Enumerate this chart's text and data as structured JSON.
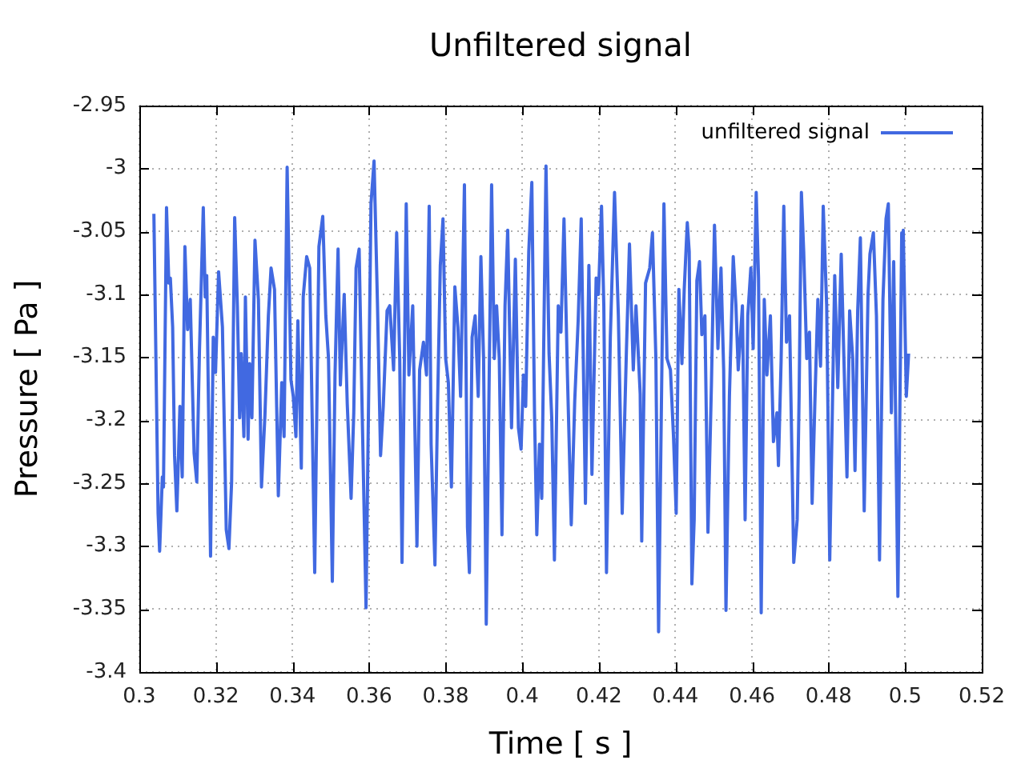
{
  "chart_data": {
    "type": "line",
    "title": "Unfiltered signal",
    "xlabel": "Time [ s ]",
    "ylabel": "Pressure [ Pa ]",
    "xlim": [
      0.3,
      0.52
    ],
    "xticks": [
      0.3,
      0.32,
      0.34,
      0.36,
      0.38,
      0.4,
      0.42,
      0.44,
      0.46,
      0.48,
      0.5,
      0.52
    ],
    "ylim": [
      -3.4,
      -2.95
    ],
    "yticks": [
      -3.4,
      -3.35,
      -3.3,
      -3.25,
      -3.2,
      -3.15,
      -3.1,
      -3.05,
      -3,
      -2.95
    ],
    "grid": true,
    "legend": "top right",
    "series": [
      {
        "name": "unfiltered signal",
        "color": "#4169e1",
        "x": [
          0.3038,
          0.3049,
          0.3053,
          0.306,
          0.3063,
          0.3071,
          0.3077,
          0.3081,
          0.3087,
          0.3092,
          0.3098,
          0.3106,
          0.3112,
          0.3119,
          0.3126,
          0.3133,
          0.3143,
          0.315,
          0.3157,
          0.3167,
          0.3172,
          0.3176,
          0.3186,
          0.3193,
          0.3199,
          0.3207,
          0.3217,
          0.3227,
          0.3234,
          0.3241,
          0.3249,
          0.3256,
          0.3262,
          0.3266,
          0.3273,
          0.3277,
          0.3284,
          0.3288,
          0.3294,
          0.3302,
          0.3311,
          0.3319,
          0.3328,
          0.3337,
          0.3344,
          0.3353,
          0.3363,
          0.3372,
          0.3378,
          0.3386,
          0.3396,
          0.3402,
          0.3409,
          0.3414,
          0.3423,
          0.3428,
          0.3437,
          0.3445,
          0.3458,
          0.3469,
          0.3479,
          0.3487,
          0.3494,
          0.3504,
          0.3511,
          0.3519,
          0.3525,
          0.3535,
          0.3543,
          0.3553,
          0.356,
          0.3566,
          0.3574,
          0.3582,
          0.3592,
          0.3605,
          0.3613,
          0.3622,
          0.363,
          0.3637,
          0.3647,
          0.3654,
          0.3664,
          0.3672,
          0.368,
          0.3686,
          0.3697,
          0.3704,
          0.3714,
          0.3725,
          0.3732,
          0.3742,
          0.375,
          0.3757,
          0.3762,
          0.3772,
          0.3779,
          0.3786,
          0.3793,
          0.38,
          0.3807,
          0.3815,
          0.3824,
          0.3832,
          0.3839,
          0.3849,
          0.3857,
          0.3862,
          0.3869,
          0.3877,
          0.3885,
          0.3892,
          0.3899,
          0.3906,
          0.3913,
          0.392,
          0.3927,
          0.3933,
          0.394,
          0.3947,
          0.3955,
          0.3962,
          0.3972,
          0.3982,
          0.399,
          0.3997,
          0.4003,
          0.4009,
          0.4017,
          0.4025,
          0.4032,
          0.4038,
          0.4045,
          0.4051,
          0.4062,
          0.407,
          0.4077,
          0.4084,
          0.4094,
          0.4101,
          0.4109,
          0.4118,
          0.4128,
          0.4137,
          0.4146,
          0.4154,
          0.4165,
          0.4174,
          0.4182,
          0.4193,
          0.4199,
          0.4207,
          0.4213,
          0.422,
          0.423,
          0.4241,
          0.4251,
          0.4261,
          0.4272,
          0.428,
          0.429,
          0.4297,
          0.4308,
          0.4312,
          0.4322,
          0.4333,
          0.434,
          0.4349,
          0.4356,
          0.437,
          0.4378,
          0.4387,
          0.4395,
          0.4402,
          0.4409,
          0.4417,
          0.4423,
          0.4431,
          0.4436,
          0.4443,
          0.4449,
          0.4456,
          0.4463,
          0.4469,
          0.4477,
          0.4485,
          0.4494,
          0.4502,
          0.4511,
          0.4519,
          0.4526,
          0.4532,
          0.4541,
          0.4551,
          0.4558,
          0.4564,
          0.4575,
          0.4582,
          0.4589,
          0.4597,
          0.4603,
          0.4611,
          0.4617,
          0.4624,
          0.4632,
          0.4639,
          0.4648,
          0.4656,
          0.4665,
          0.4669,
          0.4676,
          0.4683,
          0.469,
          0.4698,
          0.4709,
          0.4718,
          0.4723,
          0.4729,
          0.4735,
          0.4743,
          0.475,
          0.4757,
          0.4765,
          0.4772,
          0.4779,
          0.4786,
          0.4795,
          0.4803,
          0.4816,
          0.4824,
          0.4833,
          0.484,
          0.4848,
          0.4855,
          0.4863,
          0.4869,
          0.4876,
          0.4883,
          0.4893,
          0.4903,
          0.4908,
          0.4917,
          0.4925,
          0.4933,
          0.4942,
          0.495,
          0.4956,
          0.4964,
          0.497,
          0.4981,
          0.4991,
          0.4995,
          0.5003,
          0.5009
        ],
        "values": [
          -3.036,
          -3.274,
          -3.304,
          -3.245,
          -3.253,
          -3.031,
          -3.091,
          -3.087,
          -3.126,
          -3.228,
          -3.272,
          -3.189,
          -3.245,
          -3.062,
          -3.128,
          -3.104,
          -3.226,
          -3.249,
          -3.145,
          -3.031,
          -3.102,
          -3.085,
          -3.308,
          -3.134,
          -3.162,
          -3.082,
          -3.126,
          -3.287,
          -3.302,
          -3.249,
          -3.039,
          -3.109,
          -3.198,
          -3.147,
          -3.213,
          -3.102,
          -3.215,
          -3.155,
          -3.198,
          -3.057,
          -3.104,
          -3.253,
          -3.196,
          -3.117,
          -3.079,
          -3.096,
          -3.26,
          -3.17,
          -3.213,
          -2.999,
          -3.168,
          -3.181,
          -3.213,
          -3.121,
          -3.238,
          -3.102,
          -3.07,
          -3.079,
          -3.321,
          -3.062,
          -3.038,
          -3.117,
          -3.151,
          -3.328,
          -3.164,
          -3.064,
          -3.172,
          -3.1,
          -3.187,
          -3.262,
          -3.194,
          -3.079,
          -3.064,
          -3.194,
          -3.349,
          -3.028,
          -2.994,
          -3.109,
          -3.228,
          -3.189,
          -3.113,
          -3.109,
          -3.16,
          -3.051,
          -3.151,
          -3.313,
          -3.028,
          -3.164,
          -3.109,
          -3.3,
          -3.16,
          -3.138,
          -3.164,
          -3.03,
          -3.219,
          -3.315,
          -3.185,
          -3.077,
          -3.04,
          -3.151,
          -3.17,
          -3.253,
          -3.094,
          -3.126,
          -3.181,
          -3.013,
          -3.285,
          -3.321,
          -3.134,
          -3.117,
          -3.181,
          -3.07,
          -3.151,
          -3.362,
          -3.181,
          -3.013,
          -3.151,
          -3.109,
          -3.151,
          -3.291,
          -3.109,
          -3.049,
          -3.206,
          -3.072,
          -3.206,
          -3.223,
          -3.164,
          -3.189,
          -3.066,
          -3.011,
          -3.194,
          -3.291,
          -3.219,
          -3.262,
          -2.998,
          -3.147,
          -3.198,
          -3.311,
          -3.109,
          -3.13,
          -3.04,
          -3.164,
          -3.283,
          -3.185,
          -3.121,
          -3.04,
          -3.266,
          -3.077,
          -3.243,
          -3.087,
          -3.1,
          -3.03,
          -3.109,
          -3.321,
          -3.134,
          -3.019,
          -3.117,
          -3.274,
          -3.145,
          -3.06,
          -3.16,
          -3.109,
          -3.179,
          -3.296,
          -3.091,
          -3.079,
          -3.051,
          -3.151,
          -3.368,
          -3.028,
          -3.151,
          -3.16,
          -3.213,
          -3.274,
          -3.096,
          -3.155,
          -3.096,
          -3.043,
          -3.066,
          -3.33,
          -3.279,
          -3.089,
          -3.074,
          -3.132,
          -3.117,
          -3.289,
          -3.172,
          -3.045,
          -3.143,
          -3.079,
          -3.16,
          -3.351,
          -3.181,
          -3.07,
          -3.109,
          -3.16,
          -3.109,
          -3.279,
          -3.117,
          -3.079,
          -3.143,
          -3.019,
          -3.087,
          -3.353,
          -3.104,
          -3.164,
          -3.117,
          -3.217,
          -3.194,
          -3.236,
          -3.153,
          -3.03,
          -3.138,
          -3.117,
          -3.313,
          -3.279,
          -3.181,
          -3.019,
          -3.066,
          -3.151,
          -3.13,
          -3.266,
          -3.177,
          -3.104,
          -3.157,
          -3.03,
          -3.109,
          -3.311,
          -3.085,
          -3.174,
          -3.068,
          -3.151,
          -3.245,
          -3.113,
          -3.151,
          -3.24,
          -3.113,
          -3.055,
          -3.272,
          -3.1,
          -3.068,
          -3.051,
          -3.117,
          -3.311,
          -3.104,
          -3.04,
          -3.028,
          -3.194,
          -3.074,
          -3.34,
          -3.051,
          -3.049,
          -3.181,
          -3.147
        ]
      }
    ]
  }
}
